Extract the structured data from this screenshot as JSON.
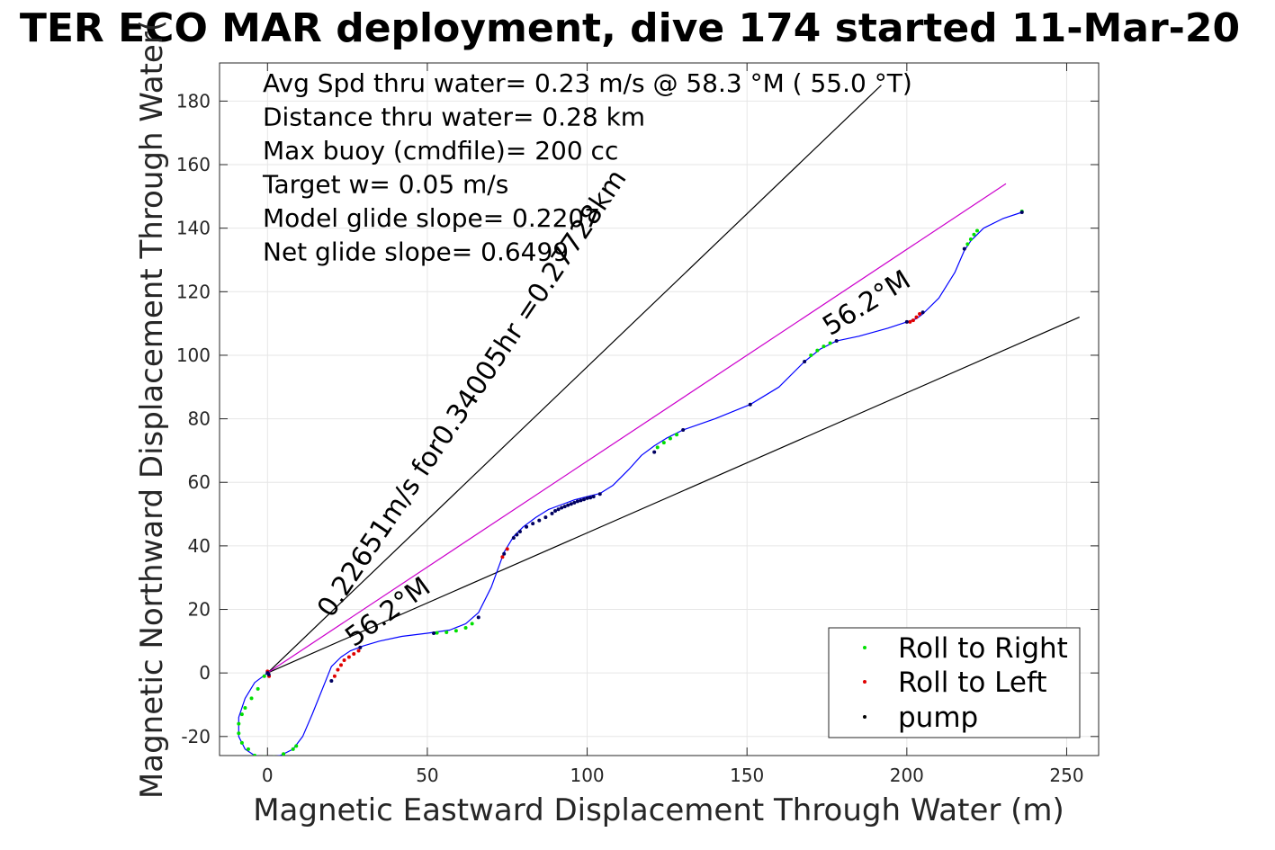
{
  "chart_data": {
    "type": "line",
    "title": "TER ECO MAR deployment, dive 174 started 11-Mar-20",
    "xlabel": "Magnetic Eastward Displacement Through Water (m)",
    "ylabel": "Magnetic Northward Displacement Through Water(",
    "xlim": [
      -15,
      260
    ],
    "ylim": [
      -26,
      192
    ],
    "xticks": [
      0,
      50,
      100,
      150,
      200,
      250
    ],
    "yticks": [
      -20,
      0,
      20,
      40,
      60,
      80,
      100,
      120,
      140,
      160,
      180
    ],
    "grid": true,
    "legend_position": "bottom-right",
    "summary_lines": [
      "Avg Spd thru water=  0.23 m/s @  58.3 °M ( 55.0 °T)",
      "Distance thru water=  0.28 km",
      "Max buoy (cmdfile)= 200 cc",
      "Target w= 0.05 m/s",
      "Model glide slope= 0.2207",
      "Net glide slope= 0.6499"
    ],
    "annotations": [
      {
        "text": "0.22651m/s for0.34005hr =0.27728km",
        "x": 20,
        "y": 17,
        "angle_deg": 56.2
      },
      {
        "text": "56.2°M",
        "x": 27,
        "y": 8,
        "angle_deg": 36
      },
      {
        "text": "56.2°M",
        "x": 176,
        "y": 106,
        "angle_deg": 32
      }
    ],
    "reference_lines": [
      {
        "name": "upper-bound-line",
        "color": "#000000",
        "x": [
          0,
          192
        ],
        "y": [
          0,
          185
        ]
      },
      {
        "name": "lower-bound-line",
        "color": "#000000",
        "x": [
          0,
          254
        ],
        "y": [
          0,
          112
        ]
      },
      {
        "name": "net-heading-line",
        "color": "#cc00cc",
        "x": [
          0,
          231
        ],
        "y": [
          0,
          154
        ]
      }
    ],
    "series": [
      {
        "name": "track",
        "color": "#0000ff",
        "x": [
          0,
          -4,
          -7,
          -9,
          -9,
          -7,
          -4,
          0,
          4,
          8,
          11,
          14,
          18,
          20,
          23,
          26,
          30,
          35,
          42,
          50,
          57,
          62,
          66,
          70,
          74,
          77,
          80,
          84,
          88,
          92,
          96,
          100,
          104,
          108,
          113,
          117,
          121,
          125,
          130,
          140,
          151,
          160,
          168,
          173,
          178,
          185,
          194,
          200,
          203,
          205,
          210,
          215,
          218,
          220,
          224,
          230,
          236
        ],
        "y": [
          0,
          -3,
          -8,
          -14,
          -20,
          -24,
          -26,
          -26.5,
          -26,
          -24,
          -20,
          -13,
          -3,
          2,
          5,
          7,
          8.5,
          10,
          11.5,
          12.5,
          13.5,
          15.5,
          19,
          27,
          38,
          43,
          46,
          49,
          51.5,
          53,
          54.5,
          55.5,
          56.5,
          59,
          64,
          68.5,
          71.5,
          74,
          76.5,
          80,
          84.5,
          90,
          98,
          102,
          104.5,
          106,
          108.5,
          110.5,
          111.5,
          113,
          118,
          126,
          133,
          136,
          140,
          143,
          145
        ]
      },
      {
        "name": "Roll to Right",
        "color": "#00e000",
        "x": [
          -1,
          -3,
          -5,
          -7,
          -8,
          -9,
          -9,
          -8,
          -6,
          -4,
          -1,
          2,
          5,
          8,
          9,
          53,
          56,
          59,
          62,
          64,
          122,
          124,
          126,
          128,
          170,
          172,
          174,
          176,
          219,
          220,
          221,
          222,
          236
        ],
        "y": [
          -1,
          -5,
          -8,
          -11,
          -13,
          -16,
          -19,
          -22,
          -24,
          -26,
          -26.5,
          -26.5,
          -25.5,
          -24,
          -23,
          12.6,
          12.8,
          13.3,
          14.2,
          15.5,
          71,
          72.5,
          73.8,
          75,
          100,
          101.5,
          102.8,
          103.8,
          135,
          136.5,
          138,
          139.2,
          145.3
        ]
      },
      {
        "name": "Roll to Left",
        "color": "#e00000",
        "x": [
          0,
          0.5,
          21,
          22,
          23,
          24,
          25.5,
          27,
          28.5,
          73.5,
          75,
          201,
          202,
          203,
          204
        ],
        "y": [
          0.5,
          -1,
          -1,
          1,
          2.5,
          4,
          5,
          6,
          7,
          36.5,
          39,
          110.5,
          111,
          112,
          113
        ]
      },
      {
        "name": "pump",
        "color": "#000060",
        "x": [
          0,
          0.4,
          20,
          29,
          52,
          66,
          74,
          77,
          78,
          79,
          81,
          83,
          85,
          87,
          89,
          90,
          91,
          92,
          93,
          94,
          95,
          96,
          97,
          98,
          99,
          100,
          101,
          102,
          104,
          121,
          130,
          151,
          168,
          178,
          200,
          205,
          218,
          236
        ],
        "y": [
          0,
          -0.5,
          -2.5,
          8,
          12.5,
          17.5,
          37.5,
          42.5,
          43.5,
          44.5,
          46,
          47,
          48,
          49,
          50.2,
          51,
          51.5,
          52,
          52.4,
          52.8,
          53.2,
          53.6,
          54,
          54.3,
          54.6,
          55,
          55.2,
          55.5,
          56.3,
          69.5,
          76.5,
          84.5,
          98,
          104.5,
          110.5,
          113.5,
          133.5,
          145
        ]
      }
    ],
    "legend": [
      {
        "label": "Roll to Right",
        "color": "#00e000"
      },
      {
        "label": "Roll to Left",
        "color": "#e00000"
      },
      {
        "label": "pump",
        "color": "#000000"
      }
    ]
  }
}
